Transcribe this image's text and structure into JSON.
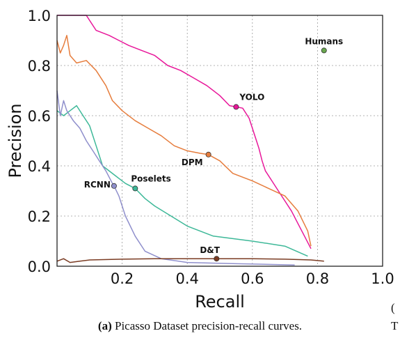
{
  "caption": {
    "bold": "(a)",
    "text": " Picasso Dataset precision-recall curves."
  },
  "edge_fragments": [
    "(",
    "T"
  ],
  "chart_data": {
    "type": "line",
    "title": "",
    "xlabel": "Recall",
    "ylabel": "Precision",
    "xlim": [
      0.0,
      1.0
    ],
    "ylim": [
      0.0,
      1.0
    ],
    "xticks": [
      "0.2",
      "0.4",
      "0.6",
      "0.8",
      "1.0"
    ],
    "yticks": [
      "0.0",
      "0.2",
      "0.4",
      "0.6",
      "0.8",
      "1.0"
    ],
    "grid": true,
    "series": [
      {
        "name": "YOLO",
        "color": "#e8179a",
        "marker": [
          0.55,
          0.635
        ],
        "points": [
          [
            0.0,
            1.0
          ],
          [
            0.09,
            1.0
          ],
          [
            0.12,
            0.94
          ],
          [
            0.16,
            0.92
          ],
          [
            0.19,
            0.9
          ],
          [
            0.22,
            0.88
          ],
          [
            0.26,
            0.86
          ],
          [
            0.3,
            0.84
          ],
          [
            0.34,
            0.8
          ],
          [
            0.38,
            0.78
          ],
          [
            0.42,
            0.75
          ],
          [
            0.46,
            0.72
          ],
          [
            0.5,
            0.68
          ],
          [
            0.53,
            0.64
          ],
          [
            0.55,
            0.635
          ],
          [
            0.57,
            0.63
          ],
          [
            0.59,
            0.59
          ],
          [
            0.6,
            0.55
          ],
          [
            0.61,
            0.51
          ],
          [
            0.62,
            0.47
          ],
          [
            0.63,
            0.42
          ],
          [
            0.64,
            0.38
          ],
          [
            0.66,
            0.34
          ],
          [
            0.68,
            0.3
          ],
          [
            0.7,
            0.26
          ],
          [
            0.72,
            0.22
          ],
          [
            0.74,
            0.17
          ],
          [
            0.76,
            0.12
          ],
          [
            0.78,
            0.07
          ]
        ]
      },
      {
        "name": "DPM",
        "color": "#e67d3d",
        "marker": [
          0.465,
          0.445
        ],
        "points": [
          [
            0.0,
            0.9
          ],
          [
            0.01,
            0.85
          ],
          [
            0.02,
            0.88
          ],
          [
            0.03,
            0.92
          ],
          [
            0.04,
            0.84
          ],
          [
            0.06,
            0.81
          ],
          [
            0.09,
            0.82
          ],
          [
            0.12,
            0.78
          ],
          [
            0.15,
            0.72
          ],
          [
            0.17,
            0.66
          ],
          [
            0.2,
            0.62
          ],
          [
            0.24,
            0.58
          ],
          [
            0.28,
            0.55
          ],
          [
            0.32,
            0.52
          ],
          [
            0.36,
            0.48
          ],
          [
            0.4,
            0.46
          ],
          [
            0.44,
            0.45
          ],
          [
            0.465,
            0.445
          ],
          [
            0.5,
            0.42
          ],
          [
            0.54,
            0.37
          ],
          [
            0.6,
            0.34
          ],
          [
            0.65,
            0.31
          ],
          [
            0.7,
            0.28
          ],
          [
            0.74,
            0.22
          ],
          [
            0.77,
            0.14
          ],
          [
            0.78,
            0.08
          ]
        ]
      },
      {
        "name": "Poselets",
        "color": "#3db898",
        "marker": [
          0.24,
          0.31
        ],
        "points": [
          [
            0.0,
            0.62
          ],
          [
            0.02,
            0.6
          ],
          [
            0.04,
            0.62
          ],
          [
            0.06,
            0.64
          ],
          [
            0.08,
            0.6
          ],
          [
            0.1,
            0.56
          ],
          [
            0.12,
            0.48
          ],
          [
            0.14,
            0.4
          ],
          [
            0.18,
            0.36
          ],
          [
            0.21,
            0.33
          ],
          [
            0.24,
            0.31
          ],
          [
            0.27,
            0.27
          ],
          [
            0.3,
            0.24
          ],
          [
            0.35,
            0.2
          ],
          [
            0.4,
            0.16
          ],
          [
            0.48,
            0.12
          ],
          [
            0.6,
            0.1
          ],
          [
            0.7,
            0.08
          ],
          [
            0.77,
            0.04
          ]
        ]
      },
      {
        "name": "RCNN",
        "color": "#8f8fcc",
        "marker": [
          0.175,
          0.32
        ],
        "points": [
          [
            0.0,
            0.7
          ],
          [
            0.01,
            0.6
          ],
          [
            0.02,
            0.66
          ],
          [
            0.03,
            0.62
          ],
          [
            0.05,
            0.58
          ],
          [
            0.07,
            0.55
          ],
          [
            0.09,
            0.5
          ],
          [
            0.11,
            0.46
          ],
          [
            0.13,
            0.42
          ],
          [
            0.15,
            0.38
          ],
          [
            0.17,
            0.33
          ],
          [
            0.175,
            0.32
          ],
          [
            0.19,
            0.28
          ],
          [
            0.21,
            0.2
          ],
          [
            0.24,
            0.12
          ],
          [
            0.27,
            0.06
          ],
          [
            0.32,
            0.03
          ],
          [
            0.4,
            0.015
          ],
          [
            0.55,
            0.01
          ],
          [
            0.73,
            0.005
          ]
        ]
      },
      {
        "name": "D&T",
        "color": "#7a3b22",
        "marker": [
          0.49,
          0.03
        ],
        "points": [
          [
            0.0,
            0.02
          ],
          [
            0.02,
            0.03
          ],
          [
            0.04,
            0.015
          ],
          [
            0.07,
            0.02
          ],
          [
            0.1,
            0.025
          ],
          [
            0.2,
            0.028
          ],
          [
            0.3,
            0.03
          ],
          [
            0.4,
            0.03
          ],
          [
            0.49,
            0.03
          ],
          [
            0.6,
            0.03
          ],
          [
            0.7,
            0.028
          ],
          [
            0.78,
            0.025
          ],
          [
            0.82,
            0.02
          ]
        ]
      },
      {
        "name": "Humans",
        "color": "#6aa84f",
        "marker": [
          0.82,
          0.86
        ],
        "points": []
      }
    ]
  }
}
